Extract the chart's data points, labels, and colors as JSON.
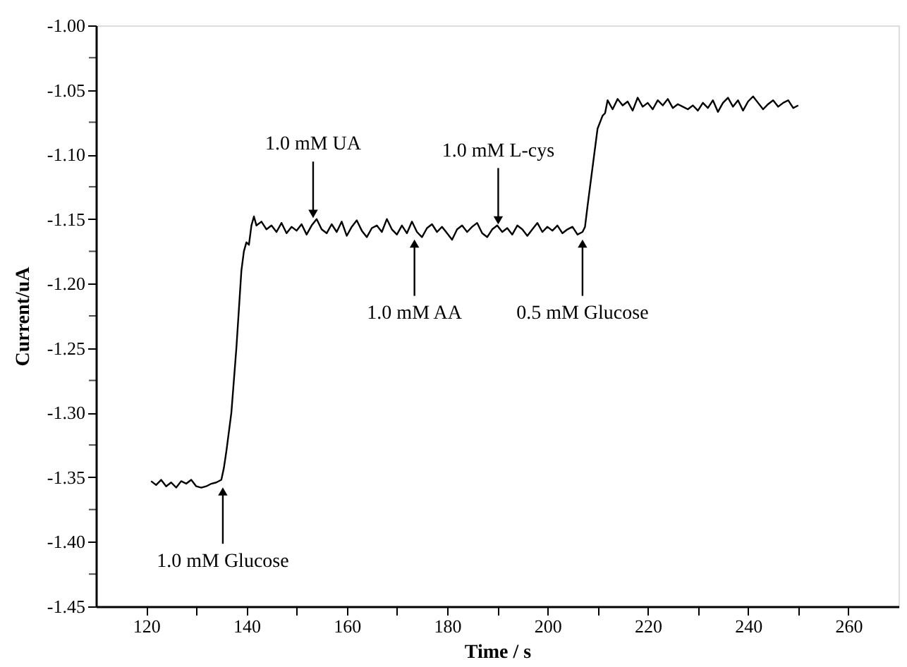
{
  "chart_data": {
    "type": "line",
    "xlabel": "Time / s",
    "ylabel": "Current/uA",
    "xlim": [
      110,
      270
    ],
    "ylim": [
      -1.45,
      -1.0
    ],
    "xticks": [
      120,
      140,
      160,
      180,
      200,
      220,
      240,
      260,
      {
        "value": 130,
        "label": null
      },
      {
        "value": 150,
        "label": null
      },
      {
        "value": 170,
        "label": null
      },
      {
        "value": 190,
        "label": null
      },
      {
        "value": 210,
        "label": null
      },
      {
        "value": 230,
        "label": null
      },
      {
        "value": 250,
        "label": null
      }
    ],
    "yticks": [
      {
        "value": -1.45,
        "label": "-1.45"
      },
      {
        "value": -1.4,
        "label": "-1.40"
      },
      {
        "value": -1.35,
        "label": "-1.35"
      },
      {
        "value": -1.3,
        "label": "-1.30"
      },
      {
        "value": -1.25,
        "label": "-1.25"
      },
      {
        "value": -1.2,
        "label": "-1.20"
      },
      {
        "value": -1.15,
        "label": "-1.15"
      },
      {
        "value": -1.1,
        "label": "-1.10"
      },
      {
        "value": -1.05,
        "label": "-1.05"
      },
      {
        "value": -1.0,
        "label": "-1.00"
      },
      {
        "value": -1.425,
        "label": null
      },
      {
        "value": -1.375,
        "label": null
      },
      {
        "value": -1.325,
        "label": null
      },
      {
        "value": -1.275,
        "label": null
      },
      {
        "value": -1.225,
        "label": null
      },
      {
        "value": -1.175,
        "label": null
      },
      {
        "value": -1.125,
        "label": null
      },
      {
        "value": -1.075,
        "label": null
      },
      {
        "value": -1.025,
        "label": null
      }
    ],
    "grid": false,
    "marker": "none",
    "line_style": "solid",
    "series": [
      {
        "color": "#000000",
        "x": [
          121,
          122,
          123,
          124,
          125,
          126,
          127,
          128,
          129,
          130,
          131,
          132,
          133,
          134,
          135,
          135.5,
          136,
          137,
          138,
          139,
          139.5,
          140,
          140.5,
          141,
          141.5,
          142,
          143,
          144,
          145,
          146,
          147,
          148,
          149,
          150,
          151,
          152,
          153,
          154,
          155,
          156,
          157,
          158,
          159,
          160,
          161,
          162,
          163,
          164,
          165,
          166,
          167,
          168,
          169,
          170,
          171,
          172,
          173,
          174,
          175,
          176,
          177,
          178,
          179,
          180,
          181,
          182,
          183,
          184,
          185,
          186,
          187,
          188,
          189,
          190,
          191,
          192,
          193,
          194,
          195,
          196,
          197,
          198,
          199,
          200,
          201,
          202,
          203,
          204,
          205,
          206,
          207,
          207.5,
          208,
          209,
          210,
          211,
          211.5,
          212,
          213,
          214,
          215,
          216,
          217,
          218,
          219,
          220,
          221,
          222,
          223,
          224,
          225,
          226,
          227,
          228,
          229,
          230,
          231,
          232,
          233,
          234,
          235,
          236,
          237,
          238,
          239,
          240,
          241,
          242,
          243,
          244,
          245,
          246,
          247,
          248,
          249,
          250
        ],
        "values": [
          -1.353,
          -1.356,
          -1.352,
          -1.357,
          -1.354,
          -1.358,
          -1.353,
          -1.355,
          -1.352,
          -1.357,
          -1.358,
          -1.357,
          -1.355,
          -1.354,
          -1.352,
          -1.343,
          -1.33,
          -1.3,
          -1.25,
          -1.19,
          -1.175,
          -1.168,
          -1.17,
          -1.155,
          -1.148,
          -1.155,
          -1.152,
          -1.158,
          -1.155,
          -1.16,
          -1.153,
          -1.161,
          -1.156,
          -1.159,
          -1.154,
          -1.162,
          -1.155,
          -1.15,
          -1.158,
          -1.161,
          -1.154,
          -1.16,
          -1.152,
          -1.163,
          -1.156,
          -1.151,
          -1.159,
          -1.164,
          -1.157,
          -1.155,
          -1.16,
          -1.15,
          -1.158,
          -1.162,
          -1.155,
          -1.161,
          -1.152,
          -1.16,
          -1.164,
          -1.157,
          -1.154,
          -1.16,
          -1.156,
          -1.161,
          -1.166,
          -1.158,
          -1.155,
          -1.16,
          -1.156,
          -1.153,
          -1.161,
          -1.164,
          -1.158,
          -1.155,
          -1.16,
          -1.157,
          -1.162,
          -1.155,
          -1.158,
          -1.163,
          -1.158,
          -1.153,
          -1.16,
          -1.156,
          -1.159,
          -1.155,
          -1.161,
          -1.158,
          -1.156,
          -1.162,
          -1.16,
          -1.156,
          -1.14,
          -1.11,
          -1.08,
          -1.07,
          -1.068,
          -1.058,
          -1.065,
          -1.057,
          -1.062,
          -1.059,
          -1.066,
          -1.056,
          -1.063,
          -1.06,
          -1.065,
          -1.058,
          -1.062,
          -1.057,
          -1.064,
          -1.061,
          -1.063,
          -1.065,
          -1.062,
          -1.066,
          -1.06,
          -1.064,
          -1.058,
          -1.067,
          -1.06,
          -1.056,
          -1.063,
          -1.058,
          -1.066,
          -1.059,
          -1.055,
          -1.06,
          -1.065,
          -1.061,
          -1.058,
          -1.063,
          -1.06,
          -1.058,
          -1.064,
          -1.062
        ]
      }
    ],
    "annotations": [
      {
        "text": "1.0 mM Glucose",
        "x": 135.3,
        "y": -1.352
      },
      {
        "text": "1.0 mM UA",
        "x": 153.3,
        "y": -1.155
      },
      {
        "text": "1.0 mM AA",
        "x": 173.5,
        "y": -1.16
      },
      {
        "text": "1.0 mM L-cys",
        "x": 190.2,
        "y": -1.16
      },
      {
        "text": "0.5 mM Glucose",
        "x": 207.0,
        "y": -1.16
      }
    ]
  }
}
